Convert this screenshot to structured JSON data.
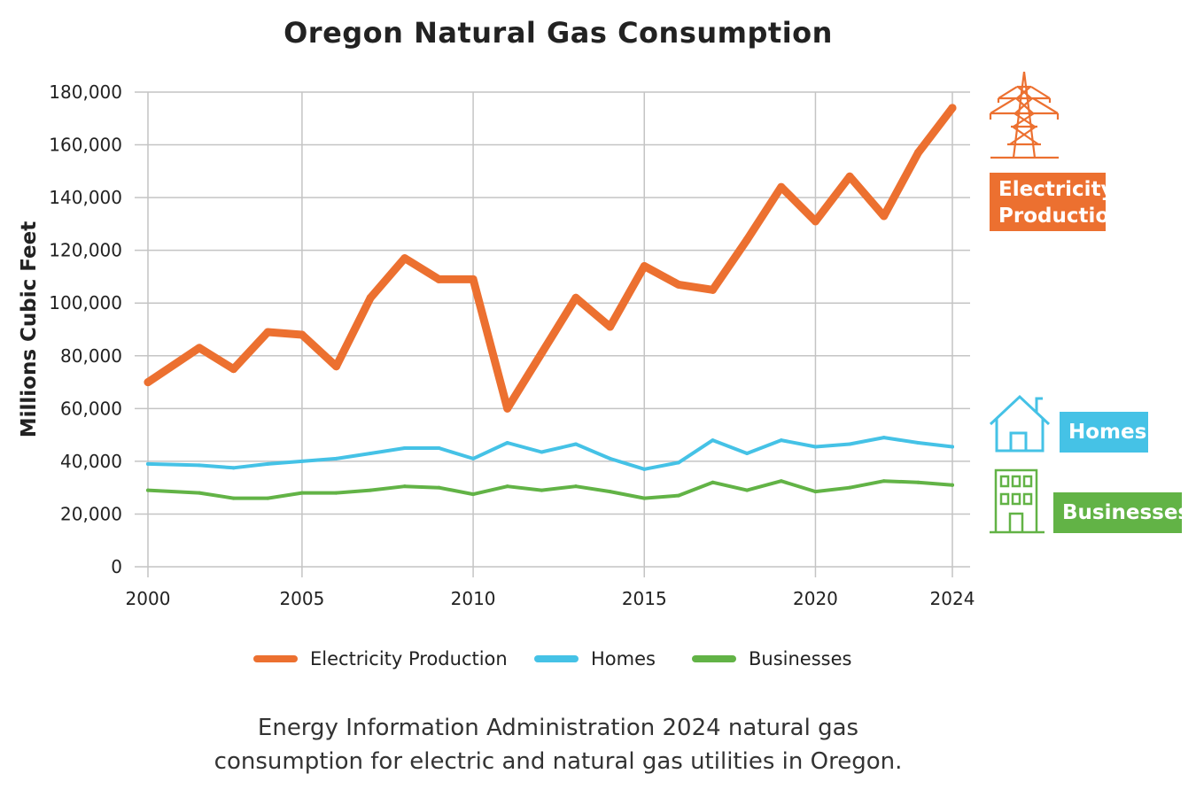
{
  "chart_data": {
    "type": "line",
    "title": "Oregon Natural Gas Consumption",
    "ylabel": "Millions Cubic Feet",
    "xlabel": "",
    "ylim": [
      0,
      180000
    ],
    "xlim": [
      2000,
      2024
    ],
    "y_ticks": [
      "0",
      "20,000",
      "40,000",
      "60,000",
      "80,000",
      "100,000",
      "120,000",
      "140,000",
      "160,000",
      "180,000"
    ],
    "x_ticks": [
      "2000",
      "2005",
      "2010",
      "2015",
      "2020",
      "2024"
    ],
    "grid": true,
    "legend": "bottom",
    "x": [
      2000,
      2002,
      2003,
      2004,
      2005,
      2006,
      2007,
      2008,
      2009,
      2010,
      2011,
      2012,
      2013,
      2014,
      2015,
      2016,
      2017,
      2018,
      2019,
      2020,
      2021,
      2022,
      2023,
      2024
    ],
    "series": [
      {
        "name": "Electricity Production",
        "color": "#ec7030",
        "values": [
          70000,
          83000,
          75000,
          89000,
          88000,
          76000,
          102000,
          117000,
          109000,
          109000,
          60000,
          81000,
          102000,
          91000,
          114000,
          107000,
          105000,
          124000,
          144000,
          131000,
          148000,
          133000,
          157000,
          174000
        ]
      },
      {
        "name": "Homes",
        "color": "#45c2e6",
        "values": [
          39000,
          38500,
          37500,
          39000,
          40000,
          41000,
          43000,
          45000,
          45000,
          41000,
          47000,
          43500,
          46500,
          41000,
          37000,
          39500,
          48000,
          43000,
          48000,
          45500,
          46500,
          49000,
          47000,
          45500
        ]
      },
      {
        "name": "Businesses",
        "color": "#62b346",
        "values": [
          29000,
          28000,
          26000,
          26000,
          28000,
          28000,
          29000,
          30500,
          30000,
          27500,
          30500,
          29000,
          30500,
          28500,
          26000,
          27000,
          32000,
          29000,
          32500,
          28500,
          30000,
          32500,
          32000,
          31000
        ]
      }
    ]
  },
  "side_labels": {
    "electricity": {
      "line1": "Electricity",
      "line2": "Production",
      "icon": "power-tower-icon"
    },
    "homes": {
      "label": "Homes",
      "icon": "house-icon"
    },
    "businesses": {
      "label": "Businesses",
      "icon": "office-building-icon"
    }
  },
  "caption": {
    "line1": "Energy Information Administration 2024 natural gas",
    "line2": "consumption for electric and natural gas utilities in Oregon."
  }
}
